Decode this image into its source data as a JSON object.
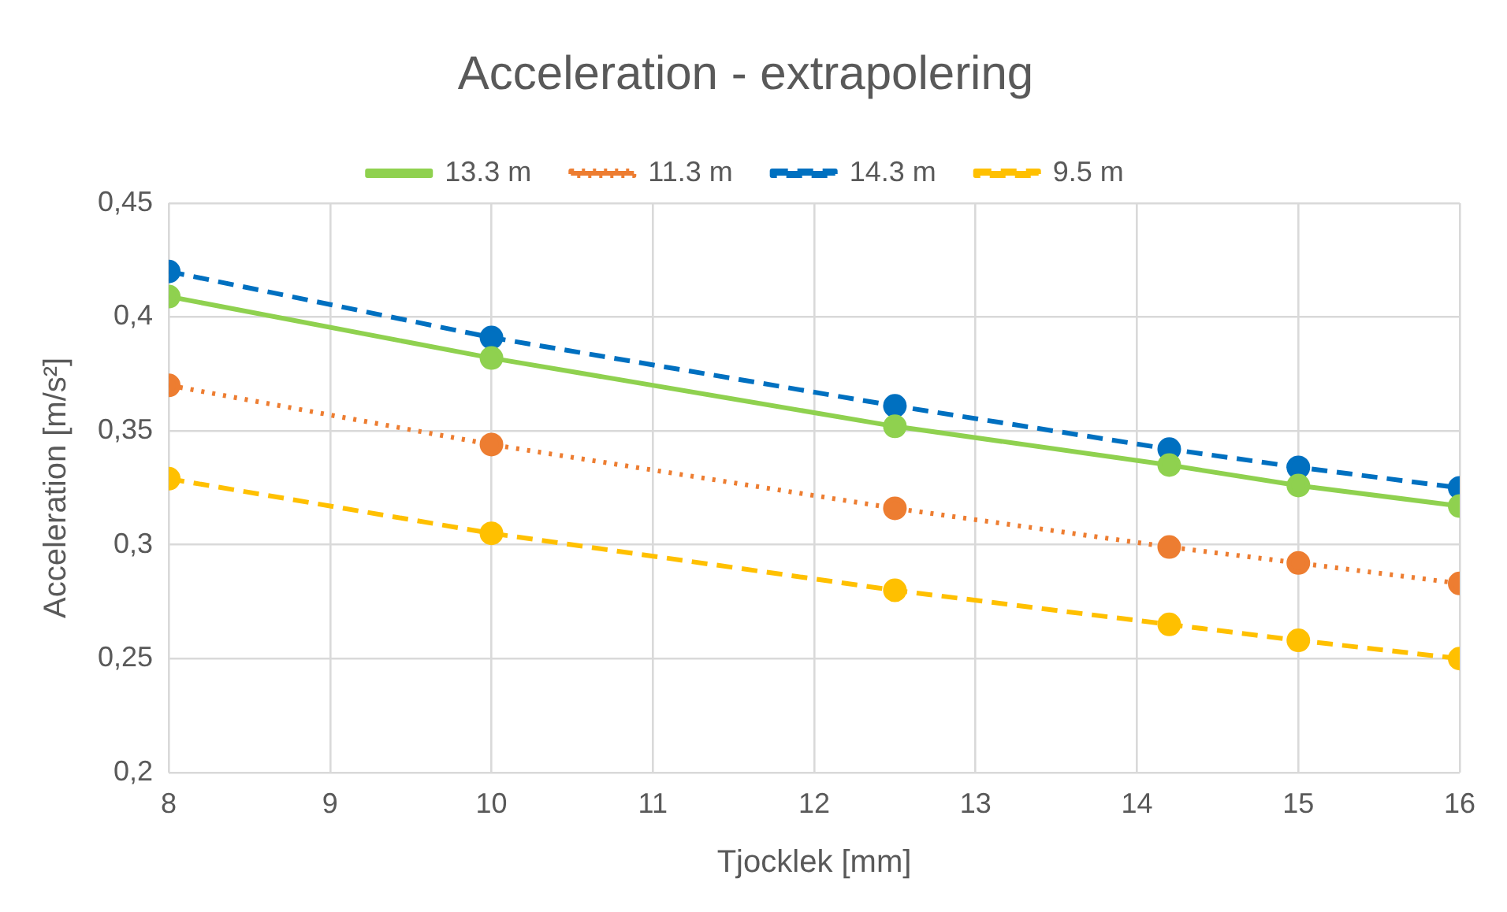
{
  "chart_data": {
    "type": "line",
    "title": "Acceleration - extrapolering",
    "xlabel": "Tjocklek [mm]",
    "ylabel": "Acceleration [m/s²]",
    "x": [
      8,
      10,
      12.5,
      14.2,
      15,
      16
    ],
    "series": [
      {
        "name": "13.3 m",
        "color": "#8fd14f",
        "line_style": "solid",
        "values": [
          0.409,
          0.382,
          0.352,
          0.335,
          0.326,
          0.317
        ]
      },
      {
        "name": "11.3 m",
        "color": "#ed7d31",
        "line_style": "dotted",
        "values": [
          0.37,
          0.344,
          0.316,
          0.299,
          0.292,
          0.283
        ]
      },
      {
        "name": "14.3 m",
        "color": "#0070c0",
        "line_style": "dashed",
        "values": [
          0.42,
          0.391,
          0.361,
          0.342,
          0.334,
          0.325
        ]
      },
      {
        "name": "9.5 m",
        "color": "#ffc000",
        "line_style": "dashed",
        "values": [
          0.329,
          0.305,
          0.28,
          0.265,
          0.258,
          0.25
        ]
      }
    ],
    "xlim": [
      8,
      16
    ],
    "xticks": [
      8,
      9,
      10,
      11,
      12,
      13,
      14,
      15,
      16
    ],
    "ylim": [
      0.2,
      0.45
    ],
    "yticks": [
      {
        "value": 0.2,
        "label": "0,2"
      },
      {
        "value": 0.25,
        "label": "0,25"
      },
      {
        "value": 0.3,
        "label": "0,3"
      },
      {
        "value": 0.35,
        "label": "0,35"
      },
      {
        "value": 0.4,
        "label": "0,4"
      },
      {
        "value": 0.45,
        "label": "0,45"
      }
    ],
    "grid": true,
    "legend": "top",
    "marker": "circle"
  }
}
